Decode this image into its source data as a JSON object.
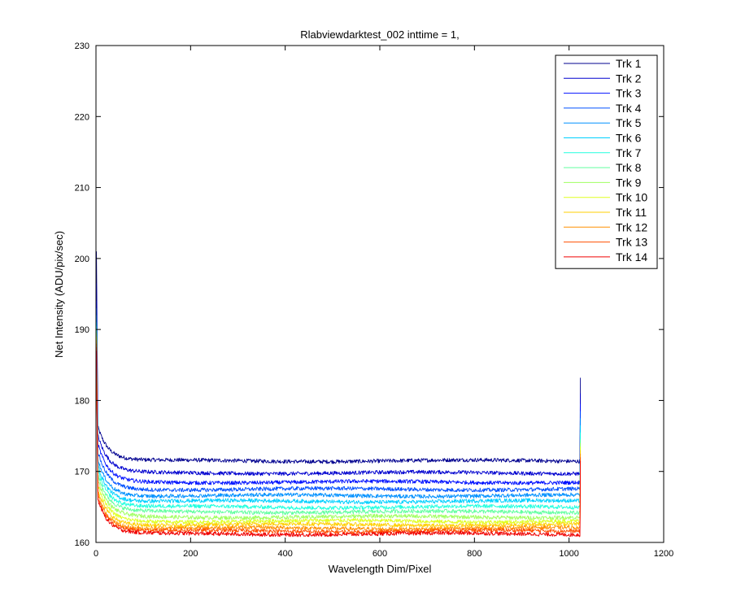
{
  "chart_data": {
    "type": "line",
    "title": "Rlabviewdarktest_002 inttime = 1,",
    "xlabel": "Wavelength Dim/Pixel",
    "ylabel": "Net Intensity (ADU/pix/sec)",
    "xlim": [
      0,
      1200
    ],
    "ylim": [
      160,
      230
    ],
    "xticks": [
      0,
      200,
      400,
      600,
      800,
      1000,
      1200
    ],
    "yticks": [
      160,
      170,
      180,
      190,
      200,
      210,
      220,
      230
    ],
    "grid": false,
    "legend_position": "top-right",
    "pixel_range": [
      1,
      1024
    ],
    "series": [
      {
        "name": "Trk 1",
        "color": "#00008f",
        "start": 201.0,
        "knee": 176.3,
        "plateau": 171.5,
        "end_spike": 183.2
      },
      {
        "name": "Trk 2",
        "color": "#0000cf",
        "start": 196.5,
        "knee": 175.0,
        "plateau": 169.8,
        "end_spike": 181.0
      },
      {
        "name": "Trk 3",
        "color": "#0010ff",
        "start": 194.0,
        "knee": 173.8,
        "plateau": 168.5,
        "end_spike": 179.5
      },
      {
        "name": "Trk 4",
        "color": "#0050ff",
        "start": 193.0,
        "knee": 172.8,
        "plateau": 167.5,
        "end_spike": 178.5
      },
      {
        "name": "Trk 5",
        "color": "#0090ff",
        "start": 192.0,
        "knee": 171.8,
        "plateau": 166.6,
        "end_spike": 177.5
      },
      {
        "name": "Trk 6",
        "color": "#00d0ff",
        "start": 191.0,
        "knee": 171.0,
        "plateau": 165.8,
        "end_spike": 176.5
      },
      {
        "name": "Trk 7",
        "color": "#20ffdf",
        "start": 190.5,
        "knee": 170.2,
        "plateau": 165.0,
        "end_spike": 175.5
      },
      {
        "name": "Trk 8",
        "color": "#60ff9f",
        "start": 190.0,
        "knee": 169.5,
        "plateau": 164.3,
        "end_spike": 174.5
      },
      {
        "name": "Trk 9",
        "color": "#a0ff60",
        "start": 189.5,
        "knee": 168.8,
        "plateau": 163.6,
        "end_spike": 174.0
      },
      {
        "name": "Trk 10",
        "color": "#dfff20",
        "start": 189.0,
        "knee": 168.2,
        "plateau": 163.0,
        "end_spike": 173.5
      },
      {
        "name": "Trk 11",
        "color": "#ffcf00",
        "start": 188.5,
        "knee": 167.6,
        "plateau": 162.5,
        "end_spike": 173.0
      },
      {
        "name": "Trk 12",
        "color": "#ff8f00",
        "start": 188.0,
        "knee": 167.0,
        "plateau": 162.0,
        "end_spike": 172.5
      },
      {
        "name": "Trk 13",
        "color": "#ff4f00",
        "start": 187.5,
        "knee": 166.5,
        "plateau": 161.6,
        "end_spike": 172.0
      },
      {
        "name": "Trk 14",
        "color": "#ef0000",
        "start": 187.0,
        "knee": 166.0,
        "plateau": 161.2,
        "end_spike": 171.5
      }
    ]
  }
}
